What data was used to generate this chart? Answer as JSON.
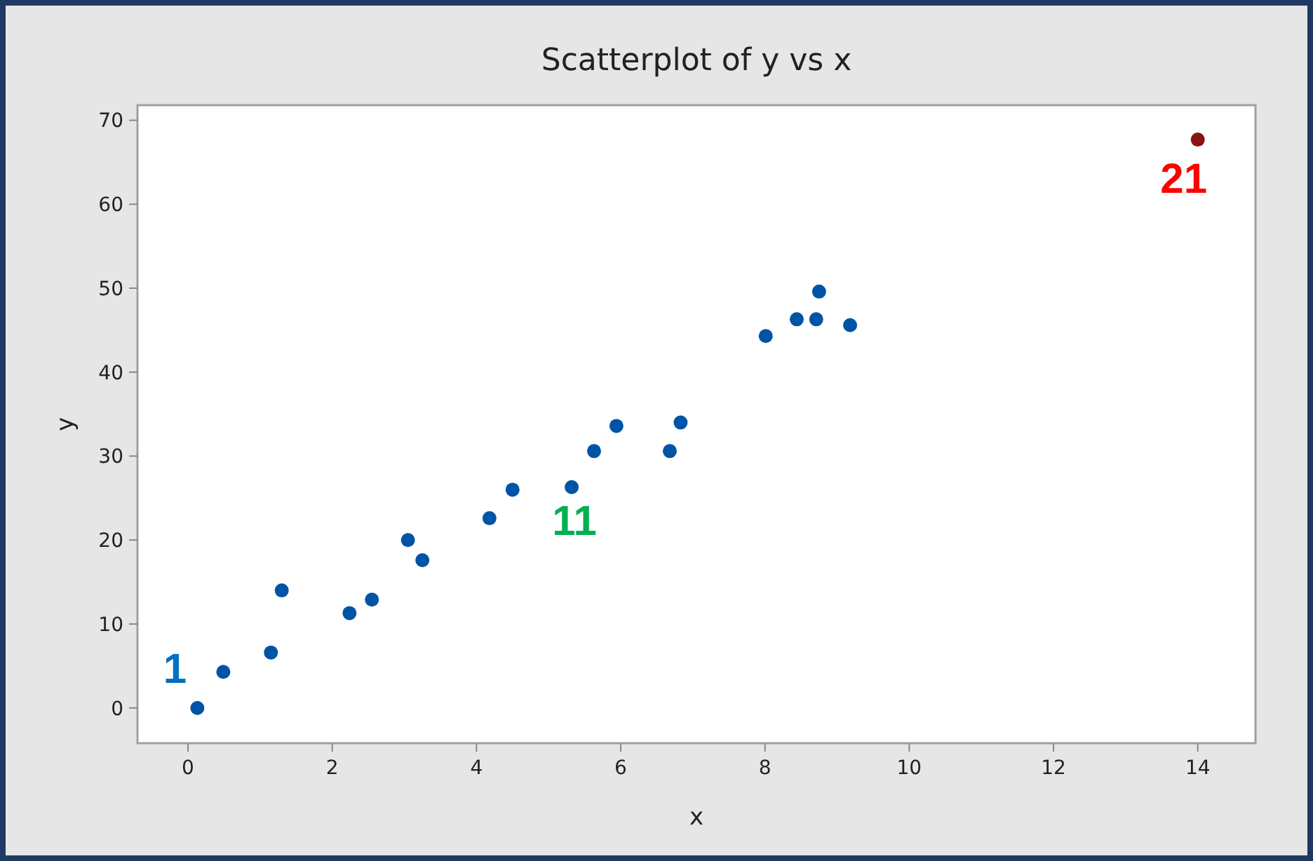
{
  "chart_data": {
    "type": "scatter",
    "title": "Scatterplot of y vs x",
    "xlabel": "x",
    "ylabel": "y",
    "xlim": [
      -0.7,
      14.8
    ],
    "ylim": [
      -4.2,
      71.8
    ],
    "xticks": [
      0,
      2,
      4,
      6,
      8,
      10,
      12,
      14
    ],
    "yticks": [
      0,
      10,
      20,
      30,
      40,
      50,
      60,
      70
    ],
    "marker": "circle",
    "series": [
      {
        "color": "#0054a6",
        "x": [
          0.13,
          0.49,
          1.15,
          1.3,
          2.24,
          2.55,
          3.05,
          3.25,
          4.18,
          4.5,
          5.32,
          5.63,
          5.94,
          6.68,
          6.83,
          8.01,
          8.44,
          8.71,
          8.75,
          9.18
        ],
        "values": [
          0,
          4.3,
          6.6,
          14,
          11.3,
          12.9,
          20,
          17.6,
          22.6,
          26,
          26.3,
          30.6,
          33.6,
          30.6,
          34,
          44.3,
          46.3,
          46.3,
          49.6,
          45.6
        ]
      },
      {
        "color": "#8b1313",
        "x": [
          14
        ],
        "values": [
          67.7
        ]
      }
    ],
    "annotations": [
      {
        "text": "1",
        "x": 0.13,
        "y": 0
      },
      {
        "text": "11",
        "x": 5.32,
        "y": 26.3
      },
      {
        "text": "21",
        "x": 14,
        "y": 67.7
      }
    ]
  }
}
